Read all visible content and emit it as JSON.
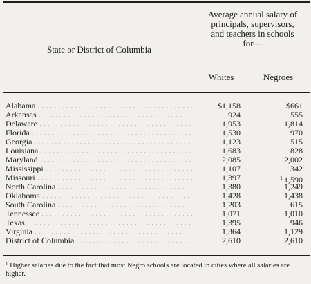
{
  "header": {
    "state_label": "State or District of Columbia",
    "avg_line1": "Average annual salary of",
    "avg_line2": "principals, supervisors,",
    "avg_line3": "and teachers in schools",
    "avg_line4": "for—",
    "col_whites": "Whites",
    "col_negroes": "Negroes"
  },
  "rows": [
    {
      "state": "Alabama",
      "whites": "$1,158",
      "negroes": "$661",
      "note": ""
    },
    {
      "state": "Arkansas",
      "whites": "924",
      "negroes": "555",
      "note": ""
    },
    {
      "state": "Delaware",
      "whites": "1,953",
      "negroes": "1,814",
      "note": ""
    },
    {
      "state": "Florida",
      "whites": "1,530",
      "negroes": "970",
      "note": ""
    },
    {
      "state": "Georgia",
      "whites": "1,123",
      "negroes": "515",
      "note": ""
    },
    {
      "state": "Louisiana",
      "whites": "1,683",
      "negroes": "828",
      "note": ""
    },
    {
      "state": "Maryland",
      "whites": "2,085",
      "negroes": "2,002",
      "note": ""
    },
    {
      "state": "Mississippi",
      "whites": "1,107",
      "negroes": "342",
      "note": ""
    },
    {
      "state": "Missouri",
      "whites": "1,397",
      "negroes": "1,590",
      "note": "1"
    },
    {
      "state": "North Carolina",
      "whites": "1,380",
      "negroes": "1,249",
      "note": ""
    },
    {
      "state": "Oklahoma",
      "whites": "1,428",
      "negroes": "1,438",
      "note": ""
    },
    {
      "state": "South Carolina",
      "whites": "1,203",
      "negroes": "615",
      "note": ""
    },
    {
      "state": "Tennessee",
      "whites": "1,071",
      "negroes": "1,010",
      "note": ""
    },
    {
      "state": "Texas",
      "whites": "1,395",
      "negroes": "946",
      "note": ""
    },
    {
      "state": "Virginia",
      "whites": "1,364",
      "negroes": "1,129",
      "note": ""
    },
    {
      "state": "District of Columbia",
      "whites": "2,610",
      "negroes": "2,610",
      "note": ""
    }
  ],
  "footnote": {
    "marker": "1",
    "text": "Higher salaries due to the fact that most Negro schools are located in cities where all salaries are higher."
  }
}
